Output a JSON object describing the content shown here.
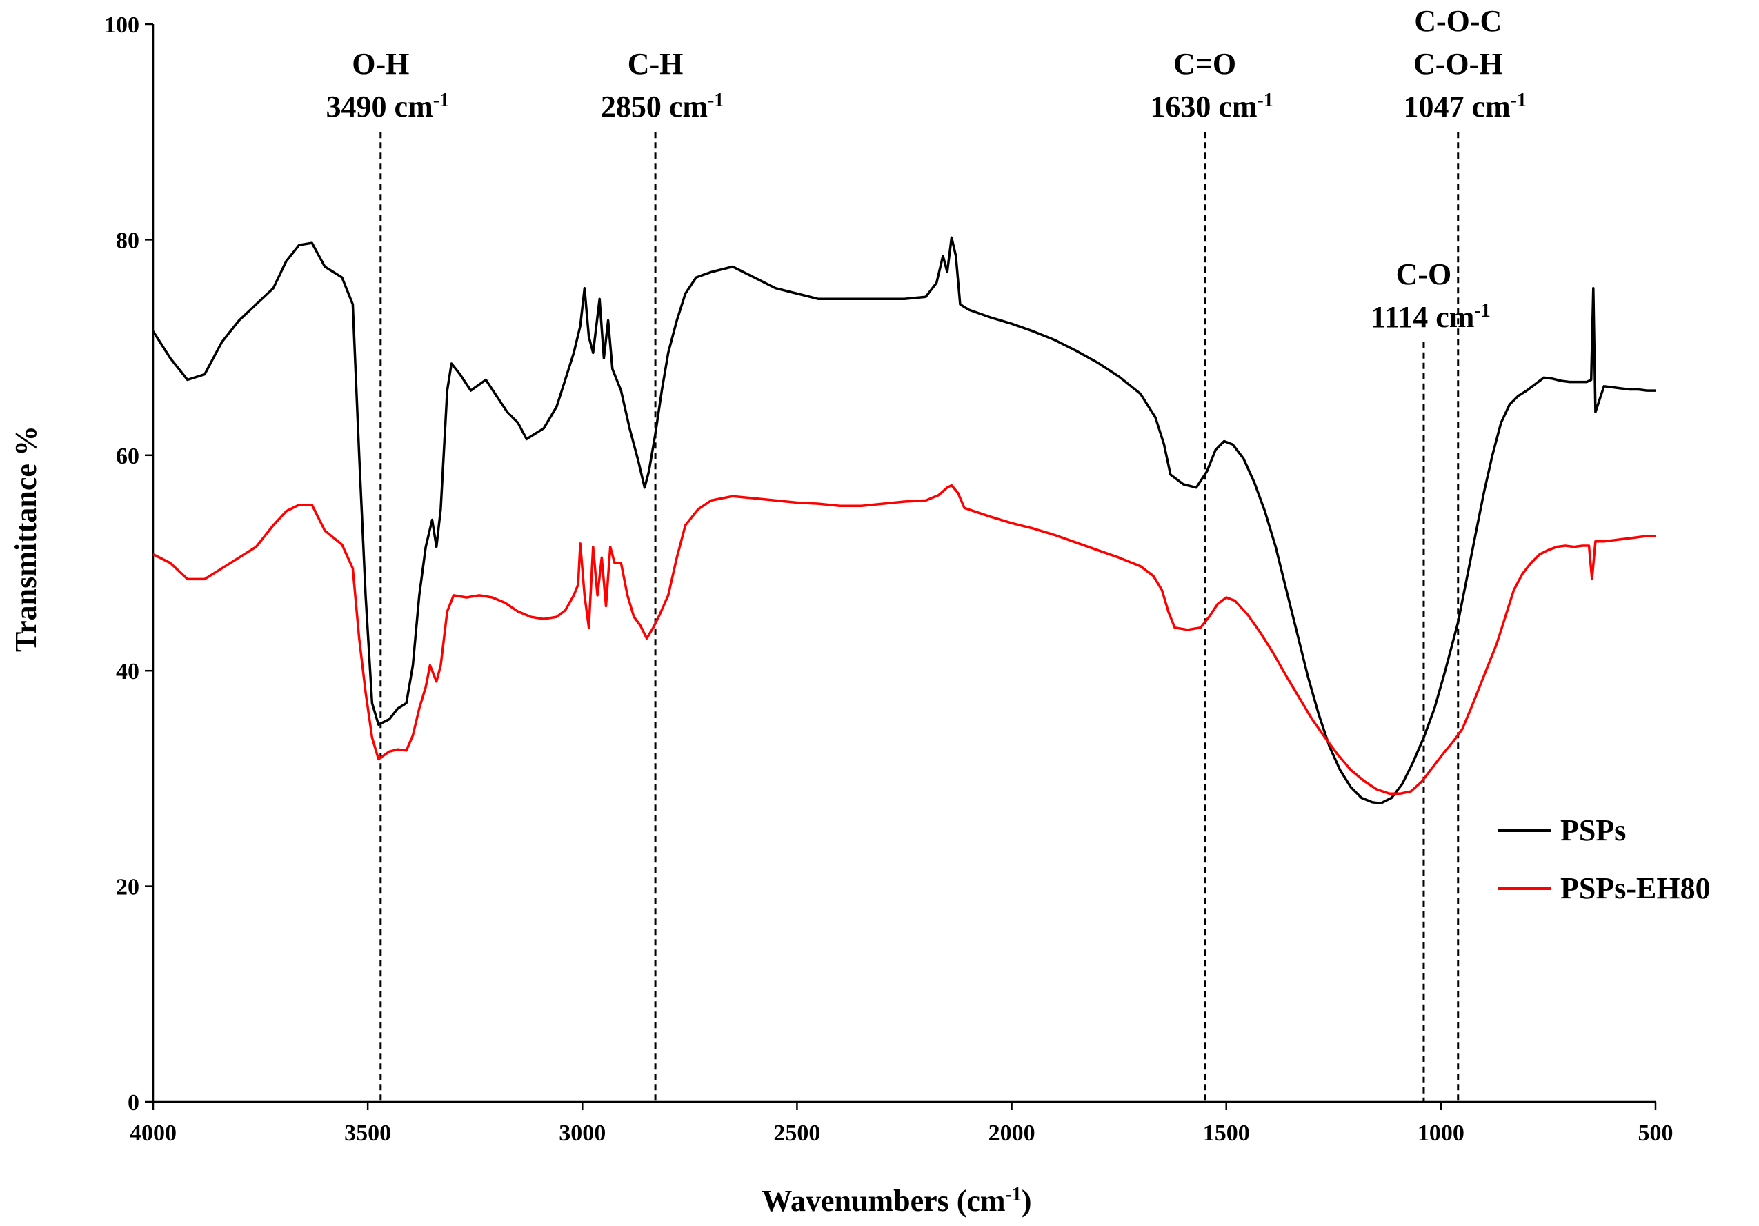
{
  "chart_data": {
    "type": "line",
    "title": "",
    "xlabel": "Wavenumbers (cm",
    "xlabel_sup": "-1",
    "xlabel_end": ")",
    "ylabel": "Transmittance %",
    "xlim": [
      4000,
      500
    ],
    "ylim": [
      0,
      100
    ],
    "x_ticks": [
      4000,
      3500,
      3000,
      2500,
      2000,
      1500,
      1000,
      500
    ],
    "y_ticks": [
      0,
      20,
      40,
      60,
      80,
      100
    ],
    "grid": false,
    "legend_position": "right",
    "series": [
      {
        "name": "PSPs",
        "color": "#000000",
        "points": [
          [
            4000,
            71.5
          ],
          [
            3960,
            69
          ],
          [
            3920,
            67
          ],
          [
            3880,
            67.5
          ],
          [
            3840,
            70.5
          ],
          [
            3800,
            72.5
          ],
          [
            3760,
            74
          ],
          [
            3720,
            75.5
          ],
          [
            3690,
            78
          ],
          [
            3660,
            79.5
          ],
          [
            3630,
            79.7
          ],
          [
            3600,
            77.5
          ],
          [
            3560,
            76.5
          ],
          [
            3535,
            74
          ],
          [
            3520,
            60
          ],
          [
            3505,
            47
          ],
          [
            3490,
            37
          ],
          [
            3475,
            35
          ],
          [
            3450,
            35.5
          ],
          [
            3430,
            36.5
          ],
          [
            3410,
            37
          ],
          [
            3395,
            40.5
          ],
          [
            3380,
            47
          ],
          [
            3365,
            51.5
          ],
          [
            3350,
            54
          ],
          [
            3340,
            51.5
          ],
          [
            3330,
            55
          ],
          [
            3315,
            66
          ],
          [
            3305,
            68.5
          ],
          [
            3285,
            67.5
          ],
          [
            3260,
            66
          ],
          [
            3225,
            67
          ],
          [
            3200,
            65.5
          ],
          [
            3175,
            64
          ],
          [
            3150,
            63
          ],
          [
            3130,
            61.5
          ],
          [
            3110,
            62
          ],
          [
            3090,
            62.5
          ],
          [
            3060,
            64.5
          ],
          [
            3040,
            67
          ],
          [
            3020,
            69.5
          ],
          [
            3005,
            72
          ],
          [
            2995,
            75.5
          ],
          [
            2985,
            71
          ],
          [
            2975,
            69.5
          ],
          [
            2960,
            74.5
          ],
          [
            2950,
            69
          ],
          [
            2940,
            72.5
          ],
          [
            2930,
            68
          ],
          [
            2910,
            66
          ],
          [
            2890,
            62.5
          ],
          [
            2870,
            59.5
          ],
          [
            2855,
            57
          ],
          [
            2845,
            58.5
          ],
          [
            2830,
            62
          ],
          [
            2815,
            66
          ],
          [
            2800,
            69.5
          ],
          [
            2780,
            72.5
          ],
          [
            2760,
            75
          ],
          [
            2735,
            76.5
          ],
          [
            2700,
            77
          ],
          [
            2650,
            77.5
          ],
          [
            2600,
            76.5
          ],
          [
            2550,
            75.5
          ],
          [
            2500,
            75
          ],
          [
            2450,
            74.5
          ],
          [
            2400,
            74.5
          ],
          [
            2350,
            74.5
          ],
          [
            2300,
            74.5
          ],
          [
            2250,
            74.5
          ],
          [
            2200,
            74.7
          ],
          [
            2175,
            76
          ],
          [
            2160,
            78.5
          ],
          [
            2150,
            77
          ],
          [
            2140,
            80.2
          ],
          [
            2130,
            78.5
          ],
          [
            2120,
            74
          ],
          [
            2100,
            73.5
          ],
          [
            2050,
            72.8
          ],
          [
            2000,
            72.2
          ],
          [
            1950,
            71.5
          ],
          [
            1900,
            70.7
          ],
          [
            1850,
            69.7
          ],
          [
            1800,
            68.6
          ],
          [
            1750,
            67.3
          ],
          [
            1700,
            65.7
          ],
          [
            1665,
            63.5
          ],
          [
            1645,
            61
          ],
          [
            1630,
            58.2
          ],
          [
            1600,
            57.3
          ],
          [
            1570,
            57
          ],
          [
            1545,
            58.5
          ],
          [
            1525,
            60.5
          ],
          [
            1505,
            61.3
          ],
          [
            1485,
            61
          ],
          [
            1460,
            59.7
          ],
          [
            1435,
            57.5
          ],
          [
            1410,
            54.8
          ],
          [
            1385,
            51.5
          ],
          [
            1360,
            47.5
          ],
          [
            1335,
            43.5
          ],
          [
            1310,
            39.5
          ],
          [
            1285,
            36
          ],
          [
            1260,
            33
          ],
          [
            1235,
            30.8
          ],
          [
            1210,
            29.2
          ],
          [
            1185,
            28.2
          ],
          [
            1160,
            27.8
          ],
          [
            1140,
            27.7
          ],
          [
            1115,
            28.2
          ],
          [
            1090,
            29.5
          ],
          [
            1065,
            31.5
          ],
          [
            1040,
            33.8
          ],
          [
            1015,
            36.5
          ],
          [
            990,
            40
          ],
          [
            960,
            44.5
          ],
          [
            940,
            48.5
          ],
          [
            920,
            52.5
          ],
          [
            900,
            56.5
          ],
          [
            880,
            60
          ],
          [
            860,
            63
          ],
          [
            840,
            64.7
          ],
          [
            820,
            65.5
          ],
          [
            800,
            66
          ],
          [
            780,
            66.6
          ],
          [
            760,
            67.2
          ],
          [
            740,
            67.1
          ],
          [
            720,
            66.9
          ],
          [
            700,
            66.8
          ],
          [
            680,
            66.8
          ],
          [
            660,
            66.8
          ],
          [
            650,
            67
          ],
          [
            645,
            75.5
          ],
          [
            640,
            64
          ],
          [
            620,
            66.4
          ],
          [
            600,
            66.3
          ],
          [
            580,
            66.2
          ],
          [
            560,
            66.1
          ],
          [
            540,
            66.1
          ],
          [
            520,
            66
          ],
          [
            500,
            66
          ]
        ]
      },
      {
        "name": "PSPs-EH80",
        "color": "#ff0000",
        "points": [
          [
            4000,
            50.8
          ],
          [
            3960,
            50
          ],
          [
            3920,
            48.5
          ],
          [
            3880,
            48.5
          ],
          [
            3840,
            49.5
          ],
          [
            3800,
            50.5
          ],
          [
            3760,
            51.5
          ],
          [
            3720,
            53.5
          ],
          [
            3690,
            54.8
          ],
          [
            3660,
            55.4
          ],
          [
            3630,
            55.4
          ],
          [
            3600,
            53
          ],
          [
            3560,
            51.7
          ],
          [
            3535,
            49.5
          ],
          [
            3520,
            43
          ],
          [
            3505,
            38
          ],
          [
            3490,
            33.8
          ],
          [
            3475,
            31.8
          ],
          [
            3450,
            32.5
          ],
          [
            3430,
            32.7
          ],
          [
            3410,
            32.6
          ],
          [
            3395,
            34
          ],
          [
            3380,
            36.5
          ],
          [
            3365,
            38.5
          ],
          [
            3355,
            40.5
          ],
          [
            3340,
            39
          ],
          [
            3330,
            40.5
          ],
          [
            3315,
            45.5
          ],
          [
            3300,
            47
          ],
          [
            3270,
            46.8
          ],
          [
            3240,
            47
          ],
          [
            3210,
            46.8
          ],
          [
            3180,
            46.3
          ],
          [
            3150,
            45.5
          ],
          [
            3120,
            45
          ],
          [
            3090,
            44.8
          ],
          [
            3060,
            45
          ],
          [
            3040,
            45.6
          ],
          [
            3020,
            47
          ],
          [
            3010,
            48
          ],
          [
            3005,
            51.8
          ],
          [
            2995,
            47
          ],
          [
            2985,
            44
          ],
          [
            2975,
            51.5
          ],
          [
            2965,
            47
          ],
          [
            2955,
            50.5
          ],
          [
            2945,
            46
          ],
          [
            2935,
            51.5
          ],
          [
            2925,
            50
          ],
          [
            2910,
            50
          ],
          [
            2895,
            47
          ],
          [
            2880,
            45
          ],
          [
            2865,
            44.2
          ],
          [
            2850,
            43
          ],
          [
            2835,
            44
          ],
          [
            2820,
            45.2
          ],
          [
            2800,
            47
          ],
          [
            2780,
            50.5
          ],
          [
            2760,
            53.5
          ],
          [
            2730,
            55
          ],
          [
            2700,
            55.8
          ],
          [
            2650,
            56.2
          ],
          [
            2600,
            56
          ],
          [
            2550,
            55.8
          ],
          [
            2500,
            55.6
          ],
          [
            2450,
            55.5
          ],
          [
            2400,
            55.3
          ],
          [
            2350,
            55.3
          ],
          [
            2300,
            55.5
          ],
          [
            2250,
            55.7
          ],
          [
            2200,
            55.8
          ],
          [
            2170,
            56.3
          ],
          [
            2150,
            57
          ],
          [
            2140,
            57.2
          ],
          [
            2125,
            56.5
          ],
          [
            2110,
            55.1
          ],
          [
            2050,
            54.3
          ],
          [
            2000,
            53.7
          ],
          [
            1950,
            53.2
          ],
          [
            1900,
            52.6
          ],
          [
            1850,
            51.9
          ],
          [
            1800,
            51.2
          ],
          [
            1750,
            50.5
          ],
          [
            1700,
            49.7
          ],
          [
            1670,
            48.8
          ],
          [
            1650,
            47.5
          ],
          [
            1635,
            45.5
          ],
          [
            1620,
            44
          ],
          [
            1590,
            43.8
          ],
          [
            1560,
            44
          ],
          [
            1540,
            45
          ],
          [
            1520,
            46.2
          ],
          [
            1500,
            46.8
          ],
          [
            1480,
            46.5
          ],
          [
            1450,
            45.2
          ],
          [
            1420,
            43.5
          ],
          [
            1390,
            41.6
          ],
          [
            1360,
            39.5
          ],
          [
            1330,
            37.5
          ],
          [
            1300,
            35.5
          ],
          [
            1270,
            33.8
          ],
          [
            1240,
            32.2
          ],
          [
            1210,
            30.8
          ],
          [
            1180,
            29.8
          ],
          [
            1150,
            29
          ],
          [
            1120,
            28.6
          ],
          [
            1095,
            28.6
          ],
          [
            1070,
            28.8
          ],
          [
            1045,
            29.7
          ],
          [
            1020,
            31
          ],
          [
            995,
            32.3
          ],
          [
            970,
            33.5
          ],
          [
            950,
            34.6
          ],
          [
            930,
            36.5
          ],
          [
            910,
            38.5
          ],
          [
            890,
            40.5
          ],
          [
            870,
            42.5
          ],
          [
            850,
            45
          ],
          [
            830,
            47.5
          ],
          [
            810,
            49
          ],
          [
            790,
            50
          ],
          [
            770,
            50.8
          ],
          [
            750,
            51.2
          ],
          [
            730,
            51.5
          ],
          [
            710,
            51.6
          ],
          [
            690,
            51.5
          ],
          [
            670,
            51.6
          ],
          [
            655,
            51.6
          ],
          [
            648,
            48.5
          ],
          [
            640,
            52
          ],
          [
            620,
            52
          ],
          [
            600,
            52.1
          ],
          [
            580,
            52.2
          ],
          [
            560,
            52.3
          ],
          [
            540,
            52.4
          ],
          [
            520,
            52.5
          ],
          [
            500,
            52.5
          ]
        ]
      }
    ],
    "annotations": [
      {
        "x": 3490,
        "label": "O-H",
        "value": "3490 cm",
        "sup": "-1",
        "line_top": 90
      },
      {
        "x": 2850,
        "label": "C-H",
        "value": "2850 cm",
        "sup": "-1",
        "line_top": 90
      },
      {
        "x": 1630,
        "label": "C=O",
        "value": "1630 cm",
        "sup": "-1",
        "line_top": 90
      },
      {
        "x": 1114,
        "label": "C-O",
        "value": "1114 cm",
        "sup": "-1",
        "line_top": 70.5
      },
      {
        "x": 1047,
        "label": "C-O-C",
        "label2": "C-O-H",
        "value": "1047 cm",
        "sup": "-1",
        "line_top": 90
      }
    ]
  }
}
